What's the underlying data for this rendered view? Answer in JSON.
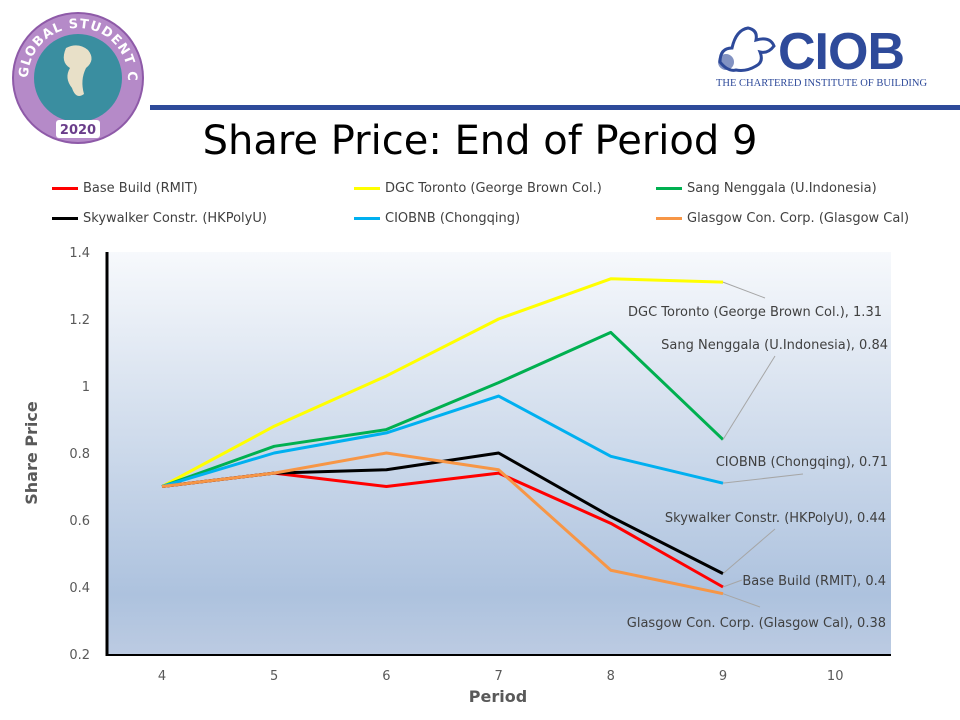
{
  "logos": {
    "left": "GLOBAL STUDENT CHALLENGE 2020",
    "right_main": "CIOB",
    "right_sub": "THE CHARTERED INSTITUTE OF BUILDING"
  },
  "colors": {
    "brand": "#2e4a9a"
  },
  "chart_data": {
    "type": "line",
    "title": "Share Price: End of Period 9",
    "xlabel": "Period",
    "ylabel": "Share Price",
    "x": [
      4,
      5,
      6,
      7,
      8,
      9
    ],
    "xticks": [
      "4",
      "5",
      "6",
      "7",
      "8",
      "9",
      "10"
    ],
    "xlim": [
      4,
      10
    ],
    "ylim": [
      0.2,
      1.4
    ],
    "yticks": [
      "0.2",
      "0.4",
      "0.6",
      "0.8",
      "1",
      "1.2",
      "1.4"
    ],
    "legend_position": "top",
    "grid": false,
    "series": [
      {
        "name": "Base Build (RMIT)",
        "color": "#ff0000",
        "values": [
          0.7,
          0.74,
          0.7,
          0.74,
          0.59,
          0.4
        ],
        "label": "Base Build (RMIT), 0.4"
      },
      {
        "name": "DGC Toronto (George Brown Col.)",
        "color": "#ffff00",
        "values": [
          0.7,
          0.88,
          1.03,
          1.2,
          1.32,
          1.31
        ],
        "label": "DGC Toronto  (George Brown Col.), 1.31"
      },
      {
        "name": "Sang Nenggala (U.Indonesia)",
        "color": "#00b050",
        "values": [
          0.7,
          0.82,
          0.87,
          1.01,
          1.16,
          0.84
        ],
        "label": "Sang Nenggala (U.Indonesia), 0.84"
      },
      {
        "name": "Skywalker Constr. (HKPolyU)",
        "color": "#000000",
        "values": [
          0.7,
          0.74,
          0.75,
          0.8,
          0.61,
          0.44
        ],
        "label": "Skywalker Constr. (HKPolyU), 0.44"
      },
      {
        "name": "CIOBNB (Chongqing)",
        "color": "#00b0f0",
        "values": [
          0.7,
          0.8,
          0.86,
          0.97,
          0.79,
          0.71
        ],
        "label": "CIOBNB (Chongqing), 0.71"
      },
      {
        "name": "Glasgow Con. Corp. (Glasgow Cal)",
        "color": "#f79646",
        "values": [
          0.7,
          0.74,
          0.8,
          0.75,
          0.45,
          0.38
        ],
        "label": "Glasgow Con. Corp. (Glasgow Cal), 0.38"
      }
    ]
  }
}
